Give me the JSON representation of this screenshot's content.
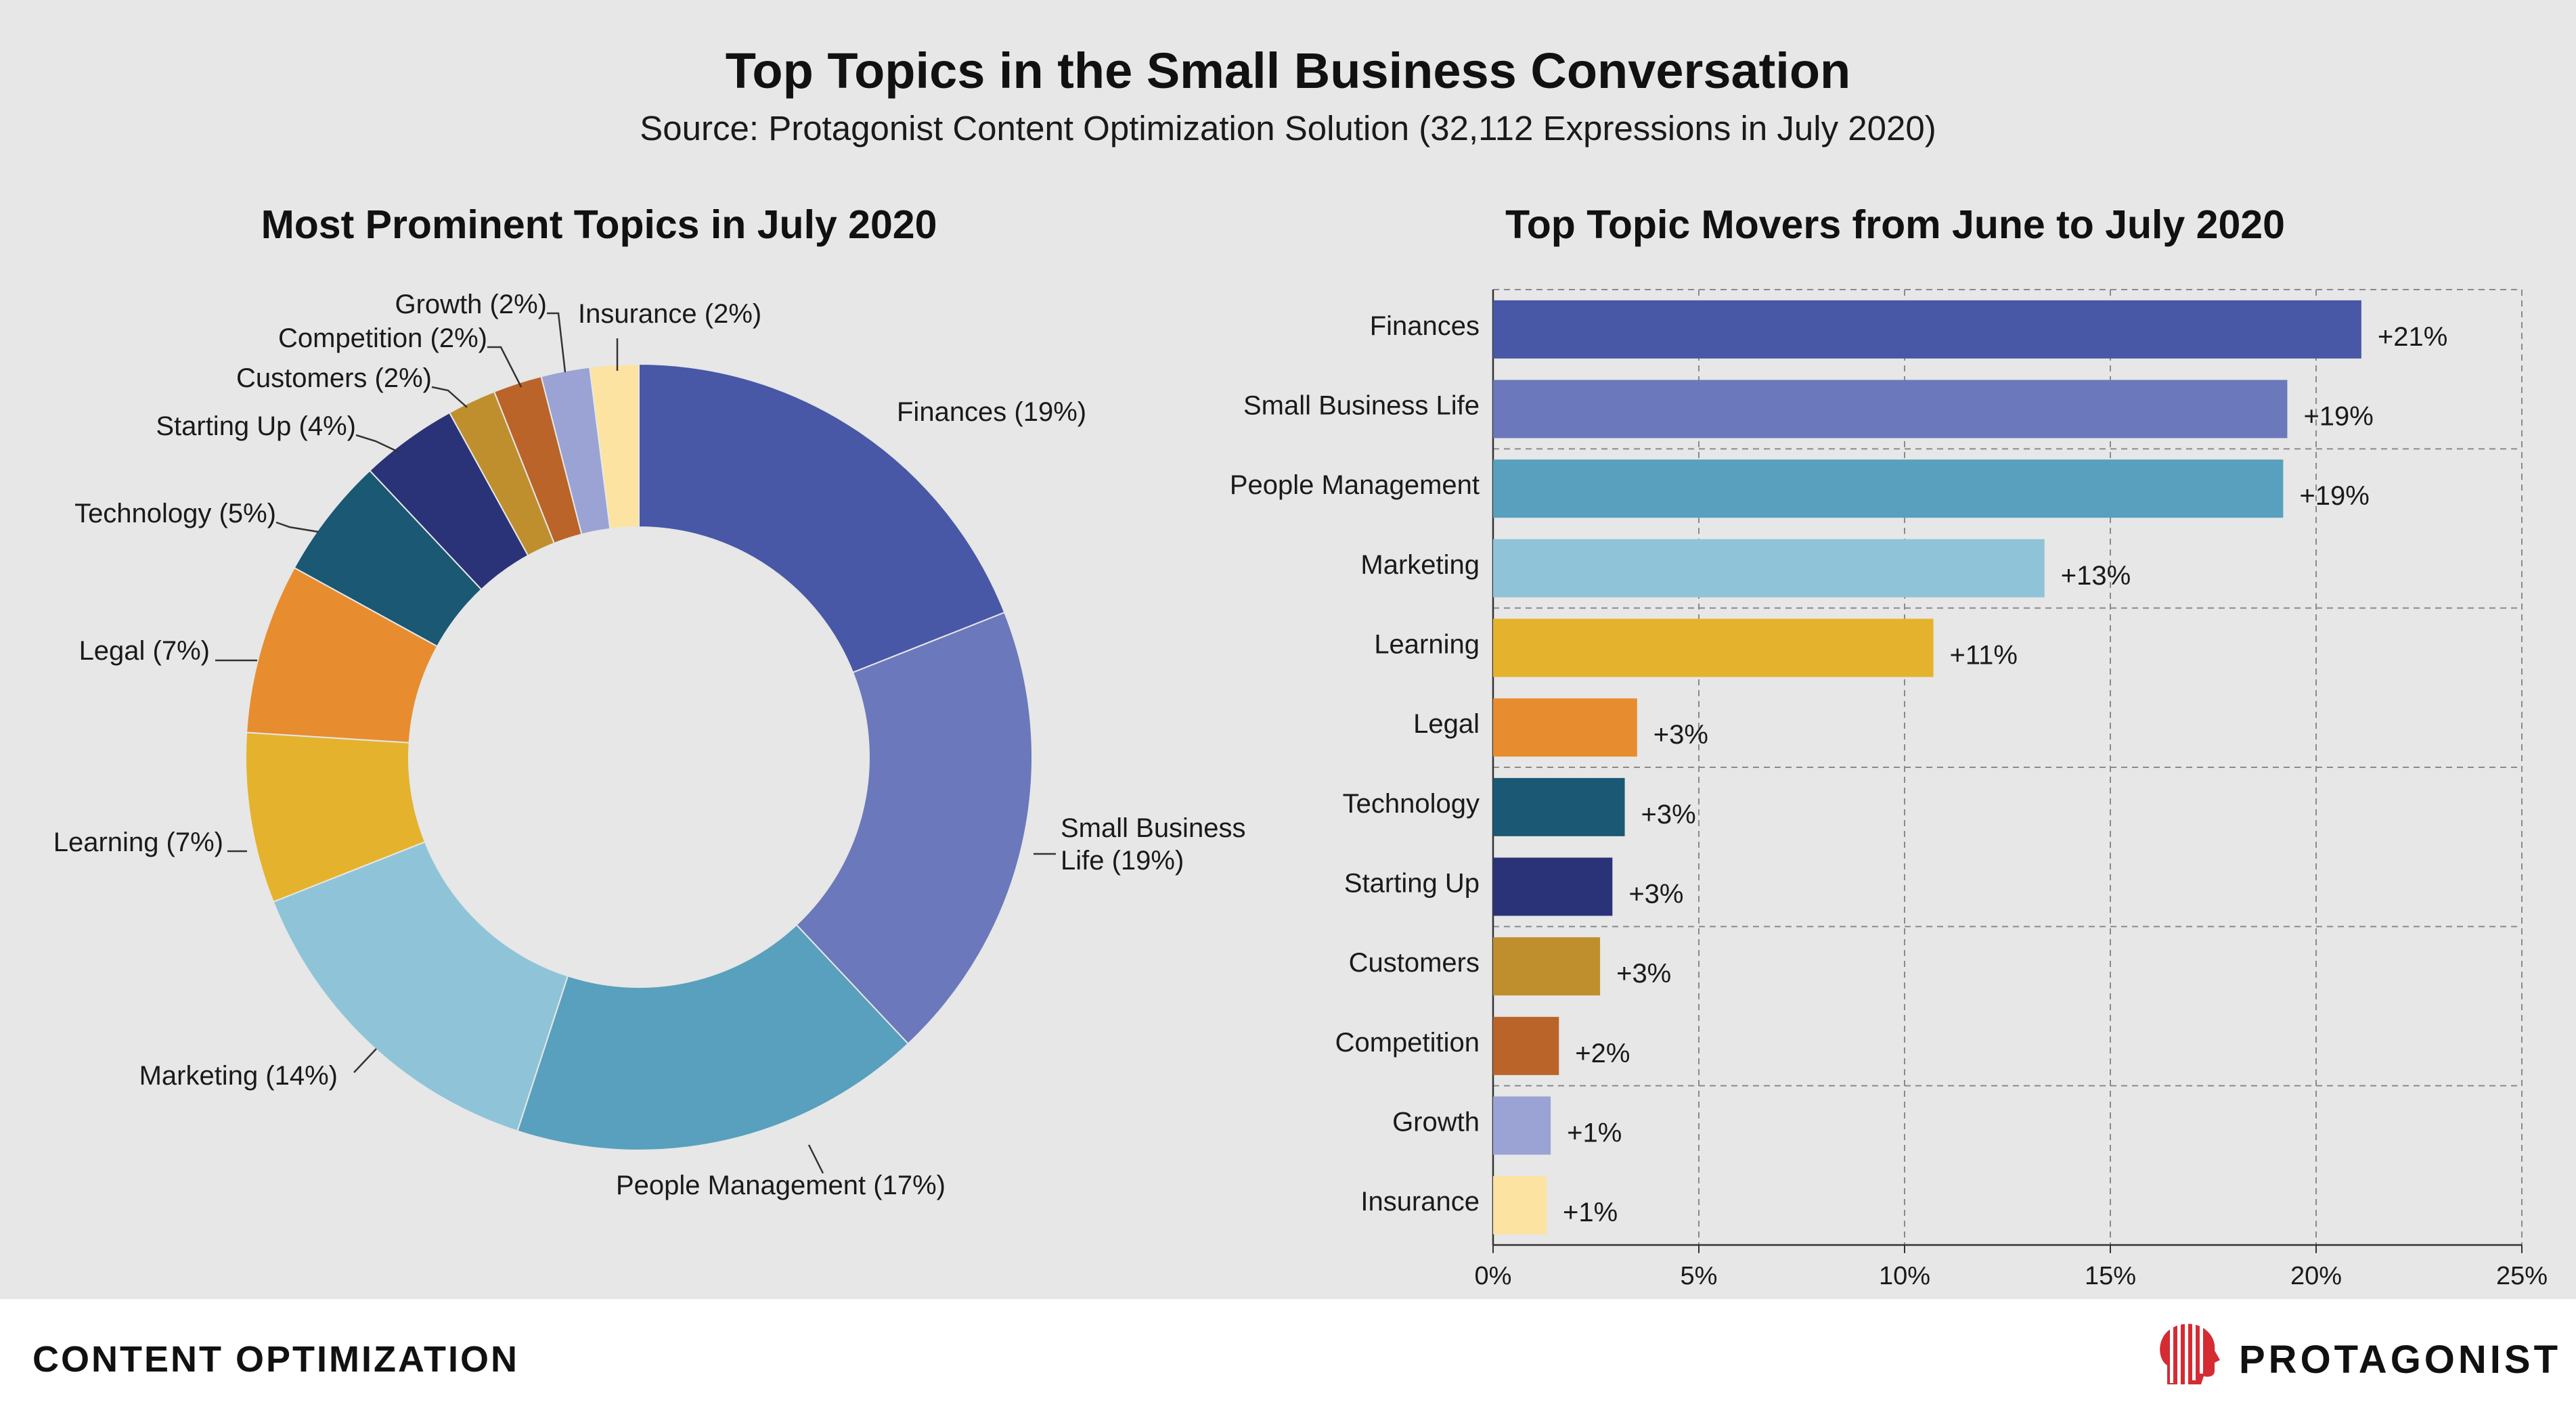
{
  "header": {
    "title": "Top Topics in the Small Business Conversation",
    "subtitle": "Source: Protagonist Content Optimization Solution (32,112 Expressions in July 2020)"
  },
  "footer": {
    "left_label": "CONTENT OPTIMIZATION",
    "brand": "PROTAGONIST"
  },
  "chart_data": [
    {
      "type": "pie",
      "style": "donut",
      "title": "Most Prominent Topics in July 2020",
      "categories": [
        "Finances",
        "Small Business Life",
        "People Management",
        "Marketing",
        "Learning",
        "Legal",
        "Technology",
        "Starting Up",
        "Customers",
        "Competition",
        "Growth",
        "Insurance"
      ],
      "values": [
        19,
        19,
        17,
        14,
        7,
        7,
        5,
        4,
        2,
        2,
        2,
        2
      ],
      "unit": "%",
      "labels": [
        "Finances (19%)",
        "Small Business\nLife (19%)",
        "People Management (17%)",
        "Marketing (14%)",
        "Learning (7%)",
        "Legal (7%)",
        "Technology (5%)",
        "Starting Up (4%)",
        "Customers (2%)",
        "Competition (2%)",
        "Growth (2%)",
        "Insurance (2%)"
      ],
      "colors": [
        "#4858a6",
        "#6b78bb",
        "#58a0bd",
        "#8fc4d8",
        "#e5b22d",
        "#e78d2f",
        "#1a5874",
        "#2a3378",
        "#bf8f2e",
        "#ba6429",
        "#9aa3d3",
        "#fde3a1"
      ]
    },
    {
      "type": "bar",
      "orientation": "horizontal",
      "title": "Top Topic Movers from June to July 2020",
      "categories": [
        "Finances",
        "Small Business Life",
        "People Management",
        "Marketing",
        "Learning",
        "Legal",
        "Technology",
        "Starting Up",
        "Customers",
        "Competition",
        "Growth",
        "Insurance"
      ],
      "values": [
        21.1,
        19.3,
        19.2,
        13.4,
        10.7,
        3.5,
        3.2,
        2.9,
        2.6,
        1.6,
        1.4,
        1.3
      ],
      "value_labels": [
        "+21%",
        "+19%",
        "+19%",
        "+13%",
        "+11%",
        "+3%",
        "+3%",
        "+3%",
        "+3%",
        "+2%",
        "+1%",
        "+1%"
      ],
      "colors": [
        "#4858a6",
        "#6b78bb",
        "#58a0bd",
        "#8fc4d8",
        "#e5b22d",
        "#e78d2f",
        "#1a5874",
        "#2a3378",
        "#bf8f2e",
        "#ba6429",
        "#9aa3d3",
        "#fde3a1"
      ],
      "xlim": [
        0,
        25
      ],
      "xticks": [
        "0%",
        "5%",
        "10%",
        "15%",
        "20%",
        "25%"
      ],
      "grid": true
    }
  ]
}
